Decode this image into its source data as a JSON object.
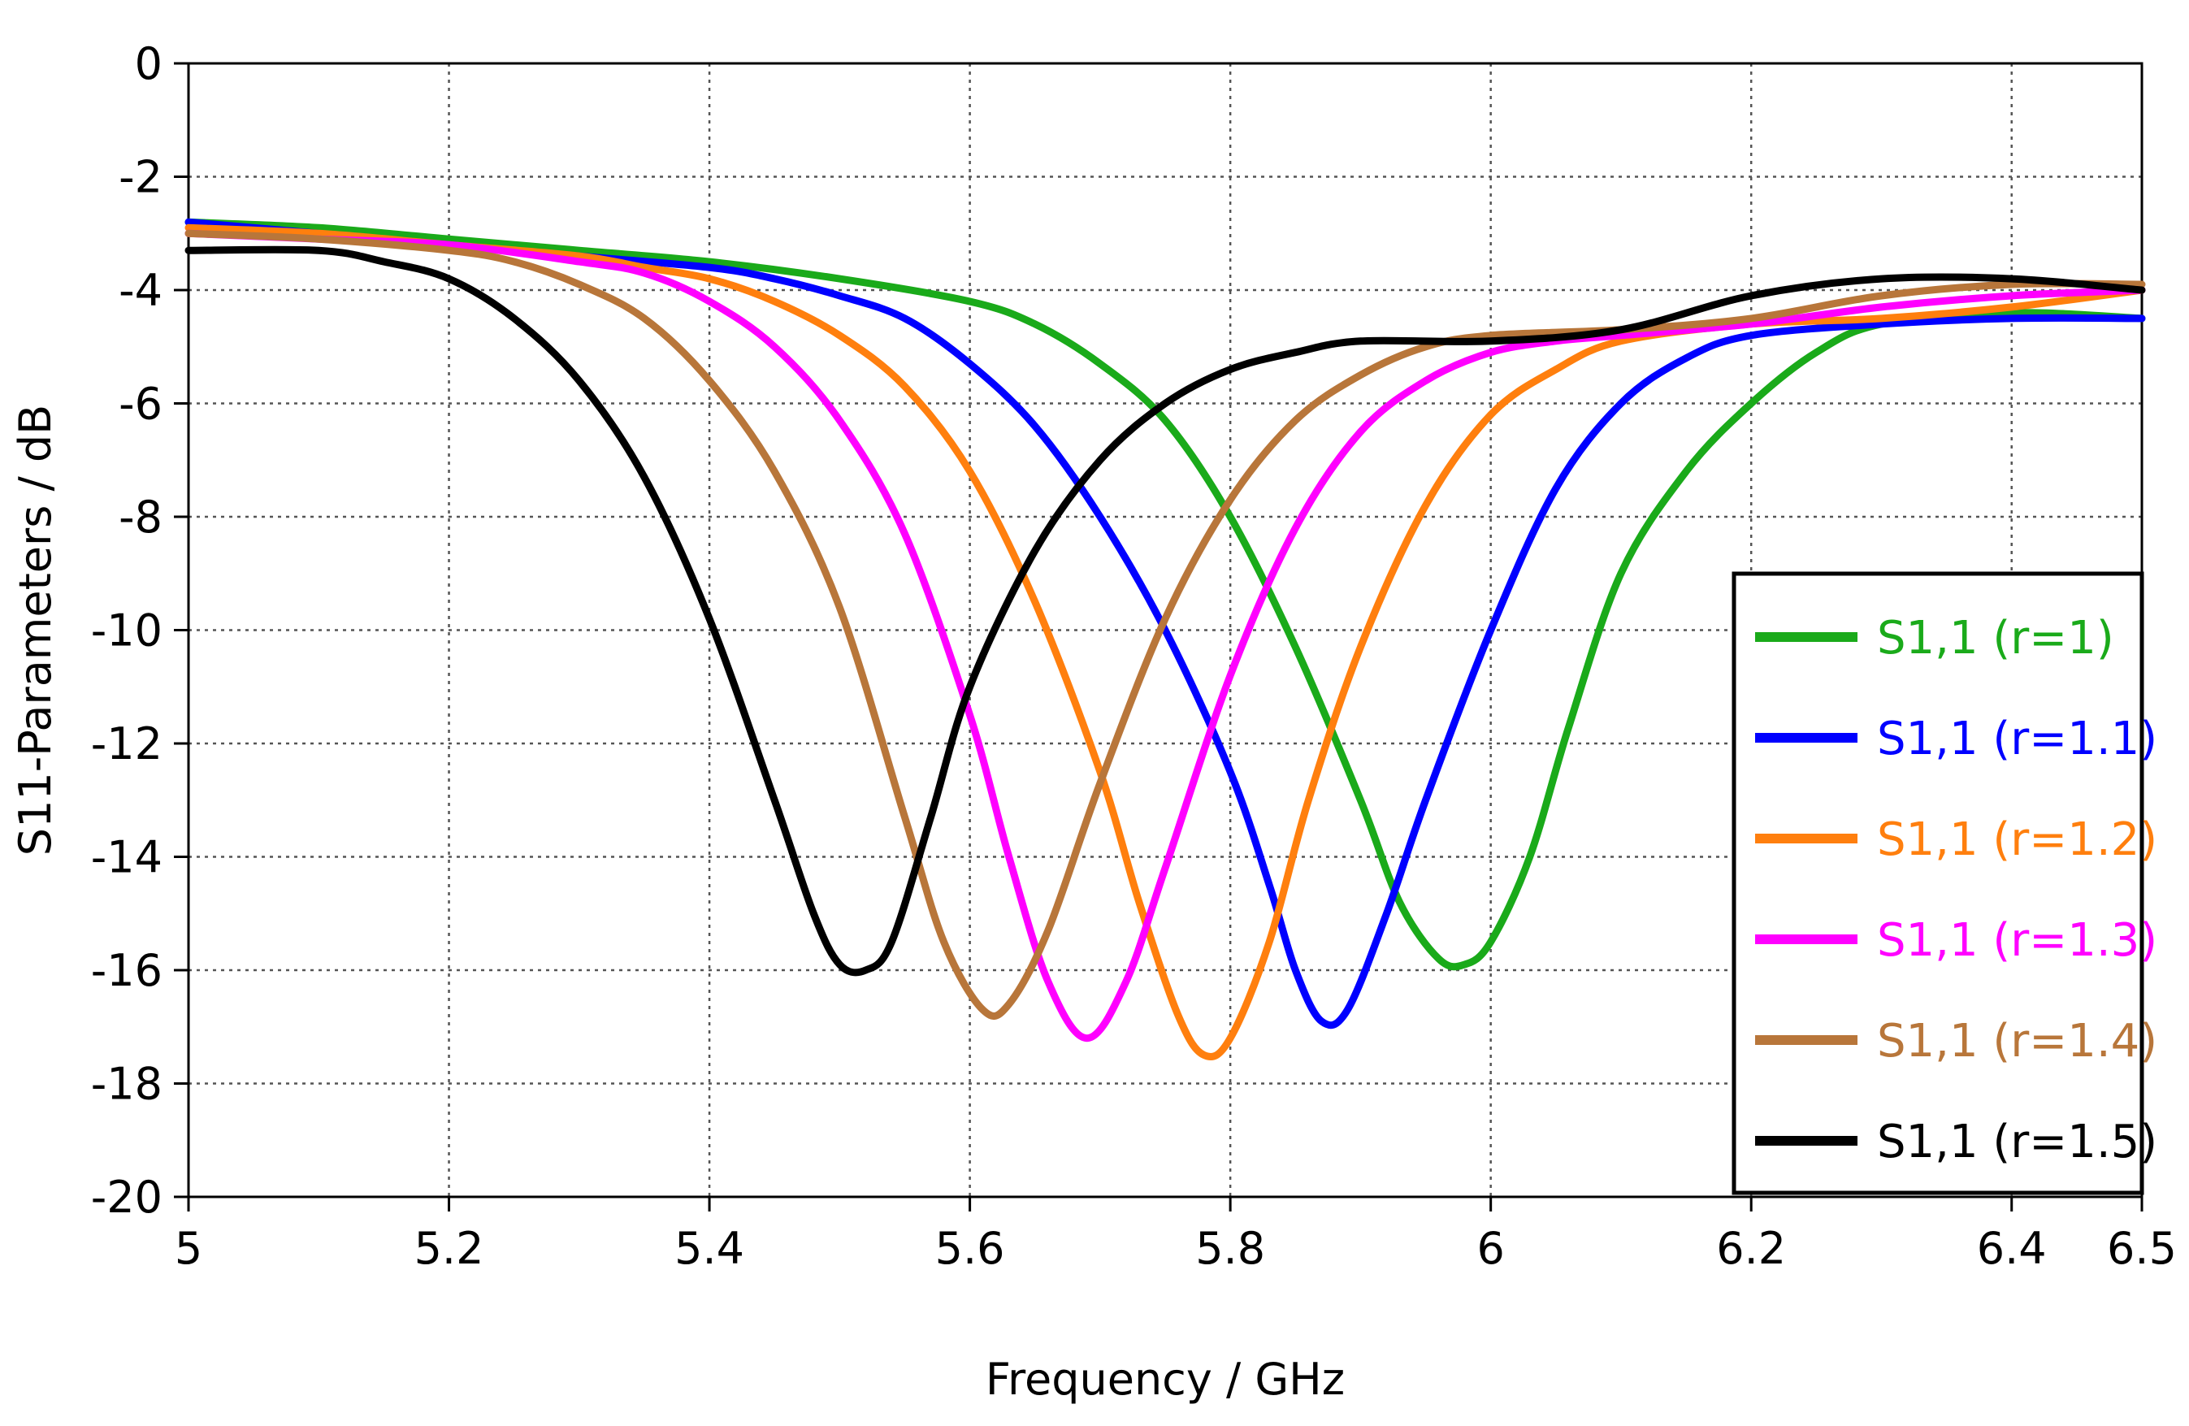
{
  "chart_data": {
    "type": "line",
    "title": "",
    "xlabel": "Frequency / GHz",
    "ylabel": "S11-Parameters / dB",
    "xlim": [
      5,
      6.5
    ],
    "ylim": [
      -20,
      0
    ],
    "xticks": [
      5,
      5.2,
      5.4,
      5.6,
      5.8,
      6,
      6.2,
      6.4,
      6.5
    ],
    "xtick_labels": [
      "5",
      "5.2",
      "5.4",
      "5.6",
      "5.8",
      "6",
      "6.2",
      "6.4",
      "6.5"
    ],
    "yticks": [
      0,
      -2,
      -4,
      -6,
      -8,
      -10,
      -12,
      -14,
      -16,
      -18,
      -20
    ],
    "ytick_labels": [
      "0",
      "-2",
      "-4",
      "-6",
      "-8",
      "-10",
      "-12",
      "-14",
      "-16",
      "-18",
      "-20"
    ],
    "grid": true,
    "legend_position": "right",
    "series": [
      {
        "name": "S1,1 (r=1)",
        "color": "#1aaa1a",
        "x": [
          5.0,
          5.1,
          5.2,
          5.3,
          5.4,
          5.5,
          5.6,
          5.65,
          5.7,
          5.75,
          5.8,
          5.85,
          5.9,
          5.93,
          5.96,
          5.98,
          6.0,
          6.03,
          6.06,
          6.1,
          6.15,
          6.2,
          6.25,
          6.3,
          6.4,
          6.5
        ],
        "values": [
          -2.8,
          -2.9,
          -3.1,
          -3.3,
          -3.5,
          -3.8,
          -4.2,
          -4.6,
          -5.3,
          -6.3,
          -8.0,
          -10.3,
          -13.0,
          -14.8,
          -15.8,
          -15.9,
          -15.5,
          -14.0,
          -11.7,
          -9.0,
          -7.2,
          -6.0,
          -5.1,
          -4.6,
          -4.4,
          -4.5
        ]
      },
      {
        "name": "S1,1 (r=1.1)",
        "color": "#0000ff",
        "x": [
          5.0,
          5.1,
          5.2,
          5.3,
          5.4,
          5.45,
          5.5,
          5.55,
          5.6,
          5.65,
          5.7,
          5.75,
          5.8,
          5.83,
          5.85,
          5.87,
          5.89,
          5.92,
          5.95,
          6.0,
          6.05,
          6.1,
          6.15,
          6.2,
          6.3,
          6.4,
          6.5
        ],
        "values": [
          -2.8,
          -3.0,
          -3.2,
          -3.4,
          -3.6,
          -3.8,
          -4.1,
          -4.5,
          -5.3,
          -6.4,
          -8.0,
          -10.0,
          -12.5,
          -14.5,
          -16.0,
          -16.9,
          -16.7,
          -15.0,
          -13.0,
          -10.0,
          -7.5,
          -6.0,
          -5.2,
          -4.8,
          -4.6,
          -4.5,
          -4.5
        ]
      },
      {
        "name": "S1,1 (r=1.2)",
        "color": "#ff7f0e",
        "x": [
          5.0,
          5.1,
          5.2,
          5.3,
          5.35,
          5.4,
          5.45,
          5.5,
          5.55,
          5.6,
          5.65,
          5.7,
          5.73,
          5.76,
          5.78,
          5.8,
          5.83,
          5.86,
          5.9,
          5.95,
          6.0,
          6.05,
          6.1,
          6.2,
          6.3,
          6.4,
          6.5
        ],
        "values": [
          -2.9,
          -3.0,
          -3.2,
          -3.4,
          -3.6,
          -3.8,
          -4.2,
          -4.8,
          -5.7,
          -7.2,
          -9.5,
          -12.5,
          -14.8,
          -16.8,
          -17.5,
          -17.2,
          -15.5,
          -13.0,
          -10.3,
          -7.8,
          -6.2,
          -5.4,
          -4.9,
          -4.6,
          -4.5,
          -4.3,
          -4.0
        ]
      },
      {
        "name": "S1,1 (r=1.3)",
        "color": "#ff00ff",
        "x": [
          5.0,
          5.1,
          5.2,
          5.3,
          5.35,
          5.4,
          5.45,
          5.5,
          5.55,
          5.6,
          5.63,
          5.66,
          5.69,
          5.72,
          5.75,
          5.8,
          5.85,
          5.9,
          5.95,
          6.0,
          6.05,
          6.1,
          6.2,
          6.3,
          6.4,
          6.5
        ],
        "values": [
          -3.0,
          -3.1,
          -3.2,
          -3.5,
          -3.7,
          -4.2,
          -5.0,
          -6.3,
          -8.3,
          -11.5,
          -14.0,
          -16.2,
          -17.2,
          -16.2,
          -14.2,
          -10.8,
          -8.2,
          -6.5,
          -5.6,
          -5.1,
          -4.9,
          -4.8,
          -4.6,
          -4.3,
          -4.1,
          -4.0
        ]
      },
      {
        "name": "S1,1 (r=1.4)",
        "color": "#b8763a",
        "x": [
          5.0,
          5.1,
          5.2,
          5.25,
          5.3,
          5.35,
          5.4,
          5.45,
          5.5,
          5.55,
          5.58,
          5.61,
          5.63,
          5.66,
          5.7,
          5.75,
          5.8,
          5.85,
          5.9,
          5.95,
          6.0,
          6.1,
          6.2,
          6.3,
          6.4,
          6.5
        ],
        "values": [
          -3.0,
          -3.1,
          -3.3,
          -3.5,
          -3.9,
          -4.5,
          -5.6,
          -7.2,
          -9.6,
          -13.3,
          -15.5,
          -16.7,
          -16.6,
          -15.3,
          -12.7,
          -9.8,
          -7.7,
          -6.3,
          -5.5,
          -5.0,
          -4.8,
          -4.7,
          -4.5,
          -4.1,
          -3.9,
          -3.9
        ]
      },
      {
        "name": "S1,1 (r=1.5)",
        "color": "#000000",
        "x": [
          5.0,
          5.1,
          5.15,
          5.2,
          5.25,
          5.3,
          5.35,
          5.4,
          5.45,
          5.48,
          5.5,
          5.52,
          5.54,
          5.57,
          5.6,
          5.65,
          5.7,
          5.75,
          5.8,
          5.85,
          5.9,
          6.0,
          6.1,
          6.2,
          6.3,
          6.4,
          6.5
        ],
        "values": [
          -3.3,
          -3.3,
          -3.5,
          -3.8,
          -4.5,
          -5.6,
          -7.3,
          -9.8,
          -13.0,
          -15.0,
          -15.9,
          -16.0,
          -15.5,
          -13.3,
          -11.0,
          -8.6,
          -7.0,
          -6.0,
          -5.4,
          -5.1,
          -4.9,
          -4.9,
          -4.7,
          -4.1,
          -3.8,
          -3.8,
          -4.0
        ]
      }
    ]
  }
}
